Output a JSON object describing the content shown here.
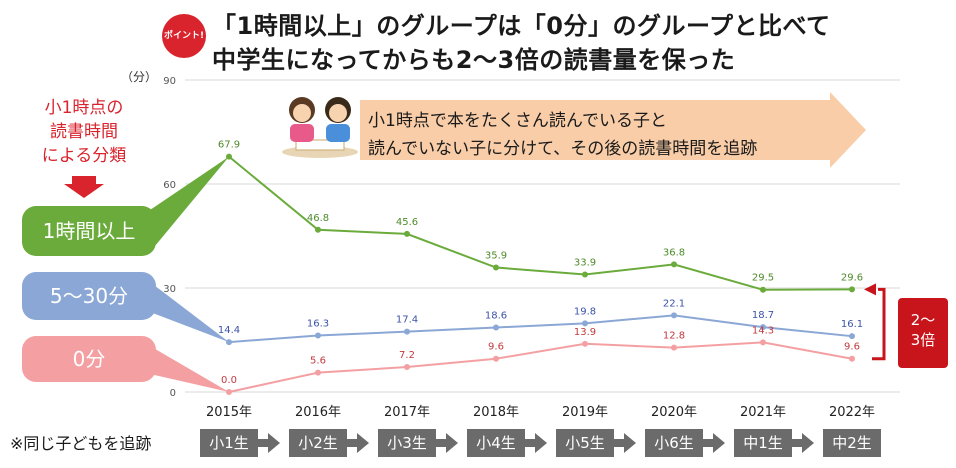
{
  "title": {
    "line1": "「1時間以上」のグループは「0分」のグループと比べて",
    "line2": "中学生になってからも2〜3倍の読書量を保った"
  },
  "badge": "ポイント!",
  "unit_label": "（分）",
  "classification": {
    "line1": "小1時点の",
    "line2": "読書時間",
    "line3": "による分類"
  },
  "banner": {
    "line1": "小1時点で本をたくさん読んでいる子と",
    "line2": "読んでいない子に分けて、その後の読書時間を追跡"
  },
  "ratio_label": {
    "line1": "2〜",
    "line2": "3倍"
  },
  "footnote": "※同じ子どもを追跡",
  "grades": [
    "小1生",
    "小2生",
    "小3生",
    "小4生",
    "小5生",
    "小6生",
    "中1生",
    "中2生"
  ],
  "colors": {
    "green": "#6aab3c",
    "blue": "#8aa7d6",
    "pink": "#f4a0a3",
    "red": "#d9232d",
    "green_label": "#4e8a2a",
    "blue_label": "#3b53a8",
    "pink_label": "#c23a3e"
  },
  "chart_data": {
    "type": "line",
    "x": [
      "2015年",
      "2016年",
      "2017年",
      "2018年",
      "2019年",
      "2020年",
      "2021年",
      "2022年"
    ],
    "ylim": [
      0,
      90
    ],
    "yticks": [
      "0",
      "30",
      "60",
      "90"
    ],
    "grid": true,
    "series": [
      {
        "name": "1時間以上",
        "values": [
          67.9,
          46.8,
          45.6,
          35.9,
          33.9,
          36.8,
          29.5,
          29.6
        ],
        "labels": [
          "67.9",
          "46.8",
          "45.6",
          "35.9",
          "33.9",
          "36.8",
          "29.5",
          "29.6"
        ]
      },
      {
        "name": "5〜30分",
        "values": [
          14.4,
          16.3,
          17.4,
          18.6,
          19.8,
          22.1,
          18.7,
          16.1
        ],
        "labels": [
          "14.4",
          "16.3",
          "17.4",
          "18.6",
          "19.8",
          "22.1",
          "18.7",
          "16.1"
        ]
      },
      {
        "name": "0分",
        "values": [
          0.0,
          5.6,
          7.2,
          9.6,
          13.9,
          12.8,
          14.3,
          9.6
        ],
        "labels": [
          "0.0",
          "5.6",
          "7.2",
          "9.6",
          "13.9",
          "12.8",
          "14.3",
          "9.6"
        ]
      }
    ]
  }
}
